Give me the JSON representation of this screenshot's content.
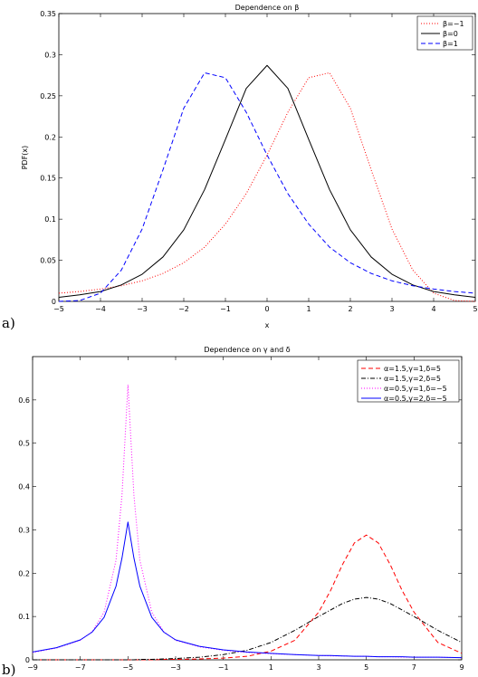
{
  "panels": [
    {
      "panel_label": "a)",
      "chart_data": {
        "type": "line",
        "title": "Dependence on β",
        "xlabel": "x",
        "ylabel": "PDF(x)",
        "xlim": [
          -5,
          5
        ],
        "ylim": [
          0,
          0.35
        ],
        "xticks": [
          -5,
          -4,
          -3,
          -2,
          -1,
          0,
          1,
          2,
          3,
          4,
          5
        ],
        "xtick_labels": [
          "−5",
          "−4",
          "−3",
          "−2",
          "−1",
          "0",
          "1",
          "2",
          "3",
          "4",
          "5"
        ],
        "yticks": [
          0,
          0.05,
          0.1,
          0.15,
          0.2,
          0.25,
          0.3,
          0.35
        ],
        "ytick_labels": [
          "0",
          "0.05",
          "0.1",
          "0.15",
          "0.2",
          "0.25",
          "0.3",
          "0.35"
        ],
        "grid": false,
        "legend_position": "top-right",
        "x": [
          -5,
          -4.5,
          -4,
          -3.5,
          -3,
          -2.5,
          -2,
          -1.5,
          -1,
          -0.5,
          0,
          0.5,
          1,
          1.5,
          2,
          2.5,
          3,
          3.5,
          4,
          4.5,
          5
        ],
        "series": [
          {
            "name": "β=−1",
            "color": "#ff0000",
            "dash": "dotted",
            "values": [
              0.01,
              0.012,
              0.015,
              0.019,
              0.025,
              0.034,
              0.047,
              0.066,
              0.094,
              0.131,
              0.178,
              0.23,
              0.272,
              0.278,
              0.235,
              0.16,
              0.088,
              0.038,
              0.01,
              0.001,
              0.0
            ]
          },
          {
            "name": "β=0",
            "color": "#000000",
            "dash": "solid",
            "values": [
              0.005,
              0.008,
              0.012,
              0.02,
              0.033,
              0.054,
              0.087,
              0.136,
              0.197,
              0.259,
              0.287,
              0.259,
              0.197,
              0.136,
              0.087,
              0.054,
              0.033,
              0.02,
              0.012,
              0.008,
              0.005
            ]
          },
          {
            "name": "β=1",
            "color": "#0000ff",
            "dash": "dashed",
            "values": [
              0.0,
              0.001,
              0.01,
              0.038,
              0.088,
              0.16,
              0.235,
              0.278,
              0.272,
              0.23,
              0.178,
              0.131,
              0.094,
              0.066,
              0.047,
              0.034,
              0.025,
              0.019,
              0.015,
              0.012,
              0.01
            ]
          }
        ]
      }
    },
    {
      "panel_label": "b)",
      "chart_data": {
        "type": "line",
        "title": "Dependence on γ and δ",
        "xlabel": "",
        "ylabel": "",
        "xlim": [
          -9,
          9
        ],
        "ylim": [
          0,
          0.7
        ],
        "xticks": [
          -9,
          -7,
          -5,
          -3,
          -1,
          1,
          3,
          5,
          7,
          9
        ],
        "xtick_labels": [
          "−9",
          "−7",
          "−5",
          "−3",
          "−1",
          "1",
          "3",
          "5",
          "7",
          "9"
        ],
        "yticks": [
          0,
          0.1,
          0.2,
          0.3,
          0.4,
          0.5,
          0.6
        ],
        "ytick_labels": [
          "0",
          "0.1",
          "0.2",
          "0.3",
          "0.4",
          "0.5",
          "0.6"
        ],
        "grid": false,
        "legend_position": "top-right",
        "x": [
          -9,
          -8,
          -7,
          -6.5,
          -6,
          -5.5,
          -5.25,
          -5,
          -4.75,
          -4.5,
          -4,
          -3.5,
          -3,
          -2,
          -1,
          0,
          1,
          2,
          3,
          3.5,
          4,
          4.5,
          5,
          5.5,
          6,
          6.5,
          7,
          8,
          9
        ],
        "series": [
          {
            "name": "α=1.5,γ=1,δ=5",
            "color": "#ff0000",
            "dash": "dashed",
            "values": [
              0.0,
              0.0,
              0.0,
              0.0,
              0.0,
              0.0,
              0.0,
              0.0,
              0.0,
              0.0,
              0.0,
              0.001,
              0.001,
              0.002,
              0.004,
              0.008,
              0.02,
              0.045,
              0.11,
              0.16,
              0.22,
              0.27,
              0.288,
              0.27,
              0.22,
              0.16,
              0.11,
              0.04,
              0.015
            ]
          },
          {
            "name": "α=1.5,γ=2,δ=5",
            "color": "#000000",
            "dash": "dashdot",
            "values": [
              0.0,
              0.0,
              0.0,
              0.0,
              0.0,
              0.0,
              0.0,
              0.0,
              0.0,
              0.001,
              0.001,
              0.002,
              0.003,
              0.006,
              0.012,
              0.022,
              0.04,
              0.068,
              0.1,
              0.115,
              0.13,
              0.14,
              0.144,
              0.14,
              0.13,
              0.115,
              0.1,
              0.068,
              0.04
            ]
          },
          {
            "name": "α=0.5,γ=1,δ=−5",
            "color": "#ff00ff",
            "dash": "dotted",
            "values": [
              0.017,
              0.027,
              0.045,
              0.065,
              0.11,
              0.23,
              0.38,
              0.635,
              0.38,
              0.23,
              0.11,
              0.065,
              0.045,
              0.03,
              0.022,
              0.017,
              0.014,
              0.012,
              0.01,
              0.009,
              0.009,
              0.008,
              0.008,
              0.007,
              0.007,
              0.006,
              0.006,
              0.006,
              0.005
            ]
          },
          {
            "name": "α=0.5,γ=2,δ=−5",
            "color": "#0000ff",
            "dash": "solid",
            "values": [
              0.018,
              0.028,
              0.046,
              0.064,
              0.098,
              0.17,
              0.235,
              0.318,
              0.235,
              0.17,
              0.098,
              0.064,
              0.046,
              0.031,
              0.023,
              0.018,
              0.015,
              0.012,
              0.01,
              0.01,
              0.009,
              0.008,
              0.008,
              0.007,
              0.007,
              0.007,
              0.006,
              0.006,
              0.005
            ]
          }
        ]
      }
    }
  ]
}
